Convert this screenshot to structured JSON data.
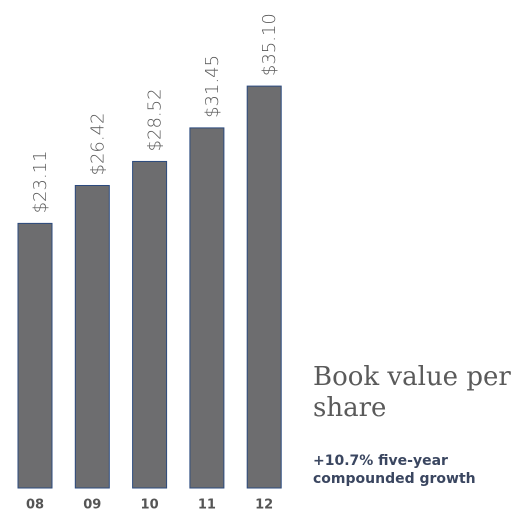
{
  "chart_data": {
    "type": "bar",
    "title": "Book value per share",
    "subtitle": "+10.7% five-year compounded growth",
    "categories": [
      "08",
      "09",
      "10",
      "11",
      "12"
    ],
    "values": [
      23.11,
      26.42,
      28.52,
      31.45,
      35.1
    ],
    "value_labels": [
      "$23.11",
      "$26.42",
      "$28.52",
      "$31.45",
      "$35.10"
    ],
    "color": "#6d6d6f",
    "ylim": [
      0,
      40
    ]
  }
}
